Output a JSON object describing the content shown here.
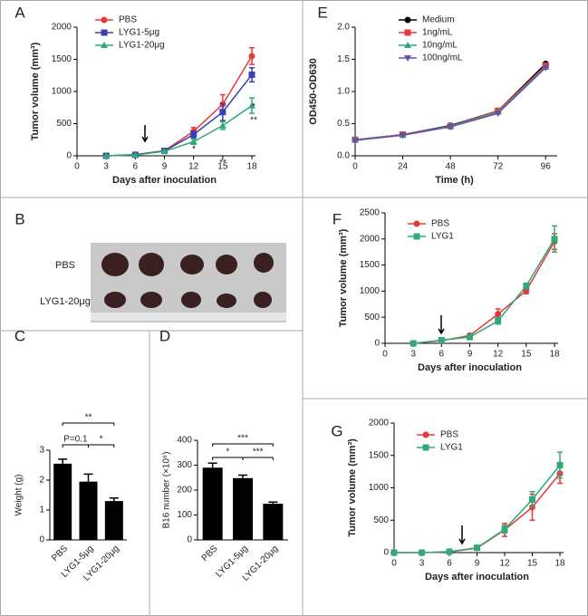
{
  "chart_data": [
    {
      "type": "line",
      "label": "A",
      "x_label": "Days after inoculation",
      "y_label": "Tumor volume (mm³)",
      "x": [
        3,
        6,
        9,
        12,
        15,
        18
      ],
      "xlim": [
        0,
        18
      ],
      "xticks": [
        0,
        3,
        6,
        9,
        12,
        15,
        18
      ],
      "ylim": [
        0,
        2000
      ],
      "yticks": [
        0,
        500,
        1000,
        1500,
        2000
      ],
      "series": [
        {
          "name": "PBS",
          "color": "#e8393a",
          "marker": "circle",
          "values": [
            0,
            20,
            80,
            380,
            800,
            1550
          ],
          "errors": [
            0,
            5,
            10,
            60,
            150,
            130
          ]
        },
        {
          "name": "LYG1-5μg",
          "color": "#3b3fb0",
          "marker": "square",
          "values": [
            0,
            15,
            75,
            330,
            680,
            1260
          ],
          "errors": [
            0,
            5,
            10,
            50,
            130,
            110
          ]
        },
        {
          "name": "LYG1-20μg",
          "color": "#2fa97a",
          "marker": "triangle",
          "values": [
            0,
            10,
            70,
            220,
            470,
            780
          ],
          "errors": [
            0,
            5,
            10,
            40,
            60,
            120
          ]
        }
      ],
      "annotations": [
        "*",
        "**",
        "*",
        "**"
      ]
    },
    {
      "type": "image",
      "label": "B",
      "rows": [
        "PBS",
        "LYG1-20μg"
      ]
    },
    {
      "type": "bar",
      "label": "C",
      "y_label": "Weight (g)",
      "categories": [
        "PBS",
        "LYG1-5μg",
        "LYG1-20μg"
      ],
      "values": [
        2.55,
        1.95,
        1.3
      ],
      "errors": [
        0.15,
        0.25,
        0.1
      ],
      "color": "#000000",
      "ylim": [
        0,
        3
      ],
      "yticks": [
        0,
        1,
        2,
        3
      ],
      "annotations": [
        "**",
        "P=0.1",
        "*"
      ]
    },
    {
      "type": "bar",
      "label": "D",
      "y_label": "B16 number (×10⁶)",
      "categories": [
        "PBS",
        "LYG1-5μg",
        "LYG1-20μg"
      ],
      "values": [
        290,
        248,
        145
      ],
      "errors": [
        18,
        12,
        7
      ],
      "color": "#000000",
      "ylim": [
        0,
        400
      ],
      "yticks": [
        0,
        100,
        200,
        300,
        400
      ],
      "annotations": [
        "***",
        "*",
        "***"
      ]
    },
    {
      "type": "line",
      "label": "E",
      "x_label": "Time (h)",
      "y_label": "OD450-OD630",
      "x": [
        0,
        24,
        48,
        72,
        96
      ],
      "xlim": [
        0,
        100
      ],
      "xticks": [
        0,
        24,
        48,
        72,
        96
      ],
      "ylim": [
        0,
        2
      ],
      "yticks": [
        {
          "value": 0,
          "label": "0.0"
        },
        0.5,
        {
          "value": 1,
          "label": "1.0"
        },
        1.5,
        {
          "value": 2,
          "label": "2.0"
        }
      ],
      "series": [
        {
          "name": "Medium",
          "color": "#000000",
          "marker": "circle",
          "values": [
            0.25,
            0.33,
            0.47,
            0.7,
            1.43
          ]
        },
        {
          "name": "1ng/mL",
          "color": "#e8393a",
          "marker": "square",
          "values": [
            0.25,
            0.33,
            0.46,
            0.7,
            1.4
          ]
        },
        {
          "name": "10ng/mL",
          "color": "#2fa97a",
          "marker": "triangle",
          "values": [
            0.25,
            0.32,
            0.46,
            0.68,
            1.38
          ]
        },
        {
          "name": "100ng/mL",
          "color": "#6a4fb0",
          "marker": "down",
          "values": [
            0.24,
            0.32,
            0.45,
            0.66,
            1.37
          ]
        }
      ]
    },
    {
      "type": "line",
      "label": "F",
      "x_label": "Days after inoculation",
      "y_label": "Tumor volume (mm³)",
      "x": [
        3,
        6,
        9,
        12,
        15,
        18
      ],
      "xlim": [
        0,
        18
      ],
      "xticks": [
        0,
        3,
        6,
        9,
        12,
        15,
        18
      ],
      "ylim": [
        0,
        2500
      ],
      "yticks": [
        0,
        500,
        1000,
        1500,
        2000,
        2500
      ],
      "series": [
        {
          "name": "PBS",
          "color": "#e8393a",
          "marker": "circle",
          "values": [
            0,
            50,
            150,
            560,
            1010,
            1950
          ],
          "errors": [
            0,
            10,
            30,
            100,
            60,
            150
          ]
        },
        {
          "name": "LYG1",
          "color": "#2fa97a",
          "marker": "square",
          "values": [
            0,
            60,
            120,
            430,
            1100,
            2000
          ],
          "errors": [
            0,
            10,
            20,
            60,
            50,
            250
          ]
        }
      ]
    },
    {
      "type": "line",
      "label": "G",
      "x_label": "Days after inoculation",
      "y_label": "Tumor volume (mm³)",
      "x": [
        0,
        3,
        6,
        9,
        12,
        15,
        18
      ],
      "xlim": [
        0,
        18
      ],
      "xticks": [
        0,
        3,
        6,
        9,
        12,
        15,
        18
      ],
      "ylim": [
        0,
        2000
      ],
      "yticks": [
        0,
        500,
        1000,
        1500,
        2000
      ],
      "series": [
        {
          "name": "PBS",
          "color": "#e8393a",
          "marker": "circle",
          "values": [
            0,
            0,
            10,
            70,
            350,
            700,
            1220
          ],
          "errors": [
            0,
            0,
            10,
            15,
            100,
            200,
            150
          ]
        },
        {
          "name": "LYG1",
          "color": "#2fa97a",
          "marker": "square",
          "values": [
            0,
            0,
            15,
            75,
            360,
            820,
            1350
          ],
          "errors": [
            0,
            0,
            5,
            15,
            60,
            120,
            200
          ]
        }
      ]
    }
  ]
}
